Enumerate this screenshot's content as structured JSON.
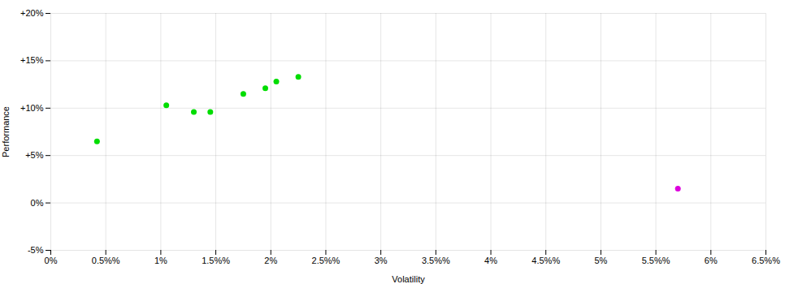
{
  "chart_data": {
    "type": "scatter",
    "xlabel": "Volatility",
    "ylabel": "Performance",
    "series": [
      {
        "color": "#00dd00",
        "x": [
          0.0042,
          0.0105,
          0.013,
          0.0145,
          0.0175,
          0.0195,
          0.0205,
          0.0225
        ],
        "values": [
          0.065,
          0.103,
          0.096,
          0.096,
          0.115,
          0.121,
          0.128,
          0.133
        ]
      },
      {
        "color": "#dd00dd",
        "x": [
          0.057
        ],
        "values": [
          0.015
        ]
      }
    ],
    "xlim": [
      0.0,
      0.065
    ],
    "ylim": [
      -0.05,
      0.2
    ],
    "xticks": [
      {
        "value": 0.0,
        "label": "0%"
      },
      {
        "value": 0.005,
        "label": "0.5%%"
      },
      {
        "value": 0.01,
        "label": "1%"
      },
      {
        "value": 0.015,
        "label": "1.5%%"
      },
      {
        "value": 0.02,
        "label": "2%"
      },
      {
        "value": 0.025,
        "label": "2.5%%"
      },
      {
        "value": 0.03,
        "label": "3%"
      },
      {
        "value": 0.035,
        "label": "3.5%%"
      },
      {
        "value": 0.04,
        "label": "4%"
      },
      {
        "value": 0.045,
        "label": "4.5%%"
      },
      {
        "value": 0.05,
        "label": "5%"
      },
      {
        "value": 0.055,
        "label": "5.5%%"
      },
      {
        "value": 0.06,
        "label": "6%"
      },
      {
        "value": 0.065,
        "label": "6.5%%"
      }
    ],
    "yticks": [
      {
        "value": -0.05,
        "label": "-5%"
      },
      {
        "value": 0.0,
        "label": "0%"
      },
      {
        "value": 0.05,
        "label": "+5%"
      },
      {
        "value": 0.1,
        "label": "+10%"
      },
      {
        "value": 0.15,
        "label": "+15%"
      },
      {
        "value": 0.2,
        "label": "+20%"
      }
    ],
    "grid": true
  }
}
